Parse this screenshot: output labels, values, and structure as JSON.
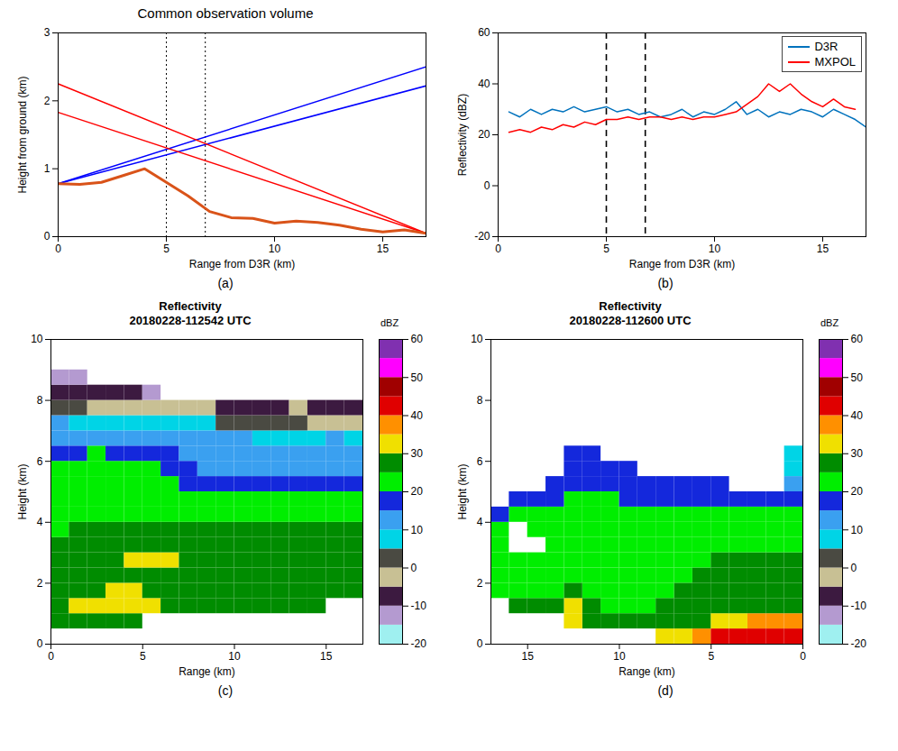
{
  "chart_data": [
    {
      "type": "line",
      "title": "Common observation volume",
      "caption": "(a)",
      "xlabel": "Range from D3R (km)",
      "ylabel": "Height from ground (km)",
      "xlim": [
        0,
        17
      ],
      "xticks": [
        0,
        5,
        10,
        15
      ],
      "ylim": [
        0,
        3
      ],
      "yticks": [
        0,
        1,
        2,
        3
      ],
      "grid": false,
      "vlines": {
        "values": [
          5,
          6.8
        ],
        "line_style": "dotted"
      },
      "series": [
        {
          "color": "#0000ff",
          "x": [
            0,
            17
          ],
          "values": [
            0.78,
            2.5
          ]
        },
        {
          "color": "#0000ff",
          "x": [
            0,
            17
          ],
          "values": [
            0.78,
            2.22
          ]
        },
        {
          "color": "#ff0000",
          "x": [
            0,
            17
          ],
          "values": [
            2.25,
            0.05
          ]
        },
        {
          "color": "#ff0000",
          "x": [
            0,
            17
          ],
          "values": [
            1.83,
            0.05
          ]
        },
        {
          "color": "#d95319",
          "x": [
            0,
            1,
            2,
            3,
            4,
            5,
            6,
            7,
            8,
            9,
            10,
            11,
            12,
            13,
            14,
            15,
            16,
            17
          ],
          "values": [
            0.78,
            0.77,
            0.8,
            0.9,
            1.0,
            0.8,
            0.6,
            0.37,
            0.28,
            0.27,
            0.2,
            0.23,
            0.21,
            0.17,
            0.11,
            0.07,
            0.1,
            0.05
          ]
        }
      ]
    },
    {
      "type": "line",
      "caption": "(b)",
      "xlabel": "Range from D3R (km)",
      "ylabel": "Reflectivity (dBZ)",
      "xlim": [
        0,
        17
      ],
      "xticks": [
        0,
        5,
        10,
        15
      ],
      "ylim": [
        -20,
        60
      ],
      "yticks": [
        -20,
        0,
        20,
        40,
        60
      ],
      "grid": false,
      "legend": "top-right",
      "vlines": {
        "values": [
          5,
          6.8
        ],
        "line_style": "dashed"
      },
      "series": [
        {
          "name": "D3R",
          "color": "#0072bd",
          "x": [
            0.5,
            1,
            1.5,
            2,
            2.5,
            3,
            3.5,
            4,
            4.5,
            5,
            5.5,
            6,
            6.5,
            7,
            7.5,
            8,
            8.5,
            9,
            9.5,
            10,
            10.5,
            11,
            11.5,
            12,
            12.5,
            13,
            13.5,
            14,
            14.5,
            15,
            15.5,
            16,
            16.5,
            17
          ],
          "values": [
            29,
            27,
            30,
            28,
            30,
            29,
            31,
            29,
            30,
            31,
            29,
            30,
            28,
            29,
            27,
            28,
            30,
            27,
            29,
            28,
            30,
            33,
            28,
            30,
            27,
            29,
            28,
            30,
            29,
            27,
            30,
            28,
            26,
            23
          ]
        },
        {
          "name": "MXPOL",
          "color": "#ff0000",
          "x": [
            0.5,
            1,
            1.5,
            2,
            2.5,
            3,
            3.5,
            4,
            4.5,
            5,
            5.5,
            6,
            6.5,
            7,
            7.5,
            8,
            8.5,
            9,
            9.5,
            10,
            10.5,
            11,
            11.5,
            12,
            12.5,
            13,
            13.5,
            14,
            14.5,
            15,
            15.5,
            16,
            16.5
          ],
          "values": [
            21,
            22,
            21,
            23,
            22,
            24,
            23,
            25,
            24,
            26,
            26,
            27,
            26,
            27,
            27,
            26,
            27,
            26,
            27,
            27,
            28,
            29,
            32,
            35,
            40,
            37,
            40,
            36,
            33,
            31,
            34,
            31,
            30
          ]
        }
      ]
    },
    {
      "type": "heatmap",
      "title": "Reflectivity",
      "subtitle": "20180228-112542 UTC",
      "caption": "(c)",
      "xlabel": "Range (km)",
      "ylabel": "Height (km)",
      "xlim": [
        0,
        17
      ],
      "xticks": [
        0,
        5,
        10,
        15
      ],
      "ylim": [
        0,
        10
      ],
      "yticks": [
        0,
        2,
        4,
        6,
        8,
        10
      ],
      "grid": false,
      "x_bins": [
        0,
        1,
        2,
        3,
        4,
        5,
        6,
        7,
        8,
        9,
        10,
        11,
        12,
        13,
        14,
        15,
        16,
        17
      ],
      "y_bins": [
        0,
        0.5,
        1,
        1.5,
        2,
        2.5,
        3,
        3.5,
        4,
        4.5,
        5,
        5.5,
        6,
        6.5,
        7,
        7.5,
        8,
        8.5,
        9,
        9.5,
        10
      ],
      "z": [
        [
          null,
          null,
          null,
          null,
          null,
          null,
          null,
          null,
          null,
          null,
          null,
          null,
          null,
          null,
          null,
          null,
          null
        ],
        [
          27,
          28,
          28,
          29,
          28,
          null,
          null,
          null,
          null,
          null,
          null,
          null,
          null,
          null,
          null,
          null,
          null
        ],
        [
          29,
          31,
          31,
          31,
          30,
          30,
          29,
          28,
          27,
          27,
          26,
          26,
          26,
          26,
          26,
          null,
          null
        ],
        [
          27,
          28,
          29,
          30,
          30,
          29,
          28,
          27,
          27,
          26,
          26,
          26,
          27,
          27,
          26,
          26,
          26
        ],
        [
          26,
          26,
          27,
          28,
          28,
          27,
          27,
          26,
          26,
          26,
          26,
          27,
          27,
          26,
          26,
          26,
          26
        ],
        [
          25,
          26,
          27,
          28,
          30,
          30,
          30,
          29,
          28,
          27,
          27,
          27,
          26,
          26,
          26,
          26,
          26
        ],
        [
          25,
          25,
          26,
          27,
          28,
          28,
          27,
          27,
          27,
          26,
          26,
          26,
          26,
          26,
          26,
          26,
          26
        ],
        [
          24,
          25,
          25,
          26,
          26,
          26,
          26,
          26,
          26,
          26,
          26,
          26,
          26,
          26,
          26,
          26,
          25
        ],
        [
          23,
          23,
          24,
          24,
          24,
          24,
          23,
          23,
          22,
          22,
          22,
          22,
          22,
          22,
          22,
          23,
          23
        ],
        [
          22,
          22,
          23,
          23,
          22,
          22,
          22,
          21,
          21,
          21,
          21,
          21,
          21,
          21,
          21,
          21,
          22
        ],
        [
          21,
          21,
          22,
          22,
          22,
          21,
          20,
          18,
          17,
          17,
          16,
          16,
          16,
          16,
          15,
          15,
          16
        ],
        [
          20,
          21,
          21,
          21,
          21,
          20,
          18,
          15,
          14,
          14,
          13,
          13,
          13,
          12,
          12,
          13,
          13
        ],
        [
          18,
          19,
          20,
          18,
          17,
          16,
          15,
          14,
          13,
          12,
          12,
          12,
          11,
          11,
          11,
          11,
          11
        ],
        [
          14,
          13,
          12,
          12,
          12,
          13,
          12,
          11,
          10,
          10,
          10,
          9,
          9,
          9,
          9,
          10,
          9
        ],
        [
          10,
          9,
          8,
          8,
          8,
          8,
          8,
          7,
          6,
          4,
          2,
          1,
          2,
          1,
          -2,
          -3,
          -2
        ],
        [
          2,
          0,
          -1,
          -2,
          -3,
          -3,
          -4,
          -4,
          -5,
          -6,
          -7,
          -6,
          -6,
          -5,
          -6,
          -7,
          -7
        ],
        [
          -7,
          -8,
          -9,
          -9,
          -10,
          -11,
          null,
          null,
          null,
          null,
          null,
          null,
          null,
          null,
          null,
          null,
          null
        ],
        [
          -12,
          -13,
          null,
          null,
          null,
          null,
          null,
          null,
          null,
          null,
          null,
          null,
          null,
          null,
          null,
          null,
          null
        ],
        [
          null,
          null,
          null,
          null,
          null,
          null,
          null,
          null,
          null,
          null,
          null,
          null,
          null,
          null,
          null,
          null,
          null
        ],
        [
          null,
          null,
          null,
          null,
          null,
          null,
          null,
          null,
          null,
          null,
          null,
          null,
          null,
          null,
          null,
          null,
          null
        ]
      ],
      "colorbar": {
        "label": "dBZ",
        "range": [
          -20,
          60
        ],
        "ticks": [
          -20,
          -10,
          0,
          10,
          20,
          30,
          40,
          50,
          60
        ],
        "colors": [
          "#9ff0f0",
          "#b49ad0",
          "#3c1a40",
          "#c8c094",
          "#4a4a42",
          "#00d4e6",
          "#3aa0f0",
          "#1428dc",
          "#00ee00",
          "#008c00",
          "#f0e000",
          "#ff9000",
          "#e00000",
          "#a00000",
          "#ff00ff",
          "#8030b0"
        ]
      }
    },
    {
      "type": "heatmap",
      "title": "Reflectivity",
      "subtitle": "20180228-112600 UTC",
      "caption": "(d)",
      "xlabel": "Range (km)",
      "ylabel": "Height (km)",
      "xlim": [
        17,
        0
      ],
      "xticks": [
        15,
        10,
        5,
        0
      ],
      "ylim": [
        0,
        10
      ],
      "yticks": [
        0,
        2,
        4,
        6,
        8,
        10
      ],
      "grid": false,
      "x_bins": [
        0,
        1,
        2,
        3,
        4,
        5,
        6,
        7,
        8,
        9,
        10,
        11,
        12,
        13,
        14,
        15,
        16,
        17
      ],
      "y_bins": [
        0,
        0.5,
        1,
        1.5,
        2,
        2.5,
        3,
        3.5,
        4,
        4.5,
        5,
        5.5,
        6,
        6.5,
        7,
        7.5,
        8,
        8.5,
        9,
        9.5,
        10
      ],
      "z": [
        [
          40,
          42,
          44,
          42,
          40,
          36,
          32,
          30,
          null,
          null,
          null,
          null,
          null,
          null,
          null,
          null,
          null
        ],
        [
          36,
          38,
          36,
          33,
          30,
          28,
          27,
          26,
          26,
          25,
          25,
          26,
          33,
          null,
          null,
          null,
          null
        ],
        [
          28,
          28,
          27,
          26,
          26,
          25,
          25,
          25,
          24,
          24,
          24,
          25,
          31,
          28,
          26,
          25,
          null
        ],
        [
          26,
          26,
          26,
          25,
          25,
          25,
          25,
          24,
          24,
          24,
          24,
          24,
          25,
          24,
          24,
          24,
          24
        ],
        [
          25,
          25,
          25,
          25,
          25,
          25,
          24,
          24,
          24,
          24,
          24,
          23,
          23,
          23,
          23,
          23,
          22
        ],
        [
          25,
          25,
          25,
          25,
          25,
          24,
          24,
          24,
          24,
          24,
          23,
          23,
          22,
          22,
          22,
          22,
          21
        ],
        [
          24,
          24,
          24,
          24,
          24,
          24,
          24,
          24,
          23,
          23,
          22,
          22,
          21,
          21,
          null,
          null,
          21
        ],
        [
          23,
          23,
          23,
          23,
          23,
          23,
          23,
          22,
          22,
          22,
          21,
          21,
          21,
          20,
          20,
          null,
          20
        ],
        [
          22,
          22,
          21,
          21,
          21,
          21,
          21,
          21,
          21,
          21,
          21,
          20,
          20,
          20,
          20,
          20,
          19
        ],
        [
          16,
          16,
          17,
          18,
          18,
          19,
          19,
          19,
          19,
          19,
          20,
          20,
          20,
          19,
          18,
          18,
          null
        ],
        [
          10,
          null,
          null,
          null,
          15,
          16,
          16,
          16,
          17,
          17,
          18,
          18,
          17,
          16,
          null,
          null,
          null
        ],
        [
          8,
          null,
          null,
          null,
          null,
          null,
          null,
          null,
          null,
          15,
          16,
          16,
          15,
          null,
          null,
          null,
          null
        ],
        [
          6,
          null,
          null,
          null,
          null,
          null,
          null,
          null,
          null,
          null,
          null,
          16,
          15,
          null,
          null,
          null,
          null
        ],
        [
          null,
          null,
          null,
          null,
          null,
          null,
          null,
          null,
          null,
          null,
          null,
          null,
          null,
          null,
          null,
          null,
          null
        ],
        [
          null,
          null,
          null,
          null,
          null,
          null,
          null,
          null,
          null,
          null,
          null,
          null,
          null,
          null,
          null,
          null,
          null
        ],
        [
          null,
          null,
          null,
          null,
          null,
          null,
          null,
          null,
          null,
          null,
          null,
          null,
          null,
          null,
          null,
          null,
          null
        ],
        [
          null,
          null,
          null,
          null,
          null,
          null,
          null,
          null,
          null,
          null,
          null,
          null,
          null,
          null,
          null,
          null,
          null
        ],
        [
          null,
          null,
          null,
          null,
          null,
          null,
          null,
          null,
          null,
          null,
          null,
          null,
          null,
          null,
          null,
          null,
          null
        ],
        [
          null,
          null,
          null,
          null,
          null,
          null,
          null,
          null,
          null,
          null,
          null,
          null,
          null,
          null,
          null,
          null,
          null
        ],
        [
          null,
          null,
          null,
          null,
          null,
          null,
          null,
          null,
          null,
          null,
          null,
          null,
          null,
          null,
          null,
          null,
          null
        ]
      ],
      "colorbar": {
        "label": "dBZ",
        "range": [
          -20,
          60
        ],
        "ticks": [
          -20,
          -10,
          0,
          10,
          20,
          30,
          40,
          50,
          60
        ],
        "colors": [
          "#9ff0f0",
          "#b49ad0",
          "#3c1a40",
          "#c8c094",
          "#4a4a42",
          "#00d4e6",
          "#3aa0f0",
          "#1428dc",
          "#00ee00",
          "#008c00",
          "#f0e000",
          "#ff9000",
          "#e00000",
          "#a00000",
          "#ff00ff",
          "#8030b0"
        ]
      }
    }
  ]
}
